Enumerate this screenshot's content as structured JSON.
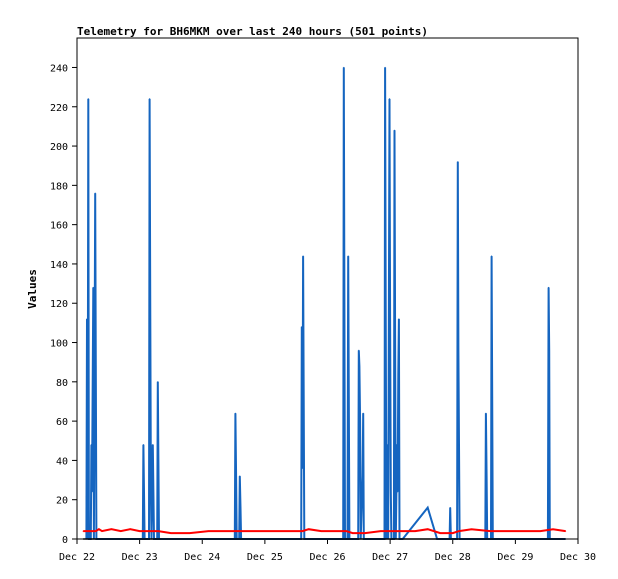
{
  "chart_data": {
    "type": "line",
    "title": "Telemetry for BH6MKM over last 240 hours (501 points)",
    "xlabel": "",
    "ylabel": "Values",
    "ylim": [
      0,
      255
    ],
    "yticks": [
      0,
      20,
      40,
      60,
      80,
      100,
      120,
      140,
      160,
      180,
      200,
      220,
      240
    ],
    "xlim": [
      "Dec 22",
      "Dec 30"
    ],
    "xticks": [
      "Dec 22",
      "Dec 23",
      "Dec 24",
      "Dec 25",
      "Dec 26",
      "Dec 27",
      "Dec 28",
      "Dec 29",
      "Dec 30"
    ],
    "grid": false,
    "legend": "none",
    "series": [
      {
        "color": "#1565c0",
        "points": [
          [
            0.15,
            0
          ],
          [
            0.16,
            112
          ],
          [
            0.17,
            0
          ],
          [
            0.18,
            224
          ],
          [
            0.19,
            0
          ],
          [
            0.22,
            0
          ],
          [
            0.23,
            48
          ],
          [
            0.24,
            24
          ],
          [
            0.26,
            128
          ],
          [
            0.27,
            0
          ],
          [
            0.29,
            176
          ],
          [
            0.3,
            88
          ],
          [
            0.31,
            0
          ],
          [
            1.05,
            0
          ],
          [
            1.06,
            48
          ],
          [
            1.07,
            24
          ],
          [
            1.08,
            0
          ],
          [
            1.15,
            0
          ],
          [
            1.16,
            224
          ],
          [
            1.17,
            112
          ],
          [
            1.18,
            24
          ],
          [
            1.19,
            0
          ],
          [
            1.21,
            48
          ],
          [
            1.22,
            24
          ],
          [
            1.23,
            0
          ],
          [
            1.28,
            0
          ],
          [
            1.29,
            80
          ],
          [
            1.3,
            40
          ],
          [
            1.31,
            0
          ],
          [
            2.52,
            0
          ],
          [
            2.53,
            64
          ],
          [
            2.54,
            32
          ],
          [
            2.55,
            0
          ],
          [
            2.59,
            0
          ],
          [
            2.6,
            32
          ],
          [
            2.61,
            16
          ],
          [
            2.62,
            0
          ],
          [
            3.58,
            0
          ],
          [
            3.59,
            108
          ],
          [
            3.6,
            36
          ],
          [
            3.61,
            144
          ],
          [
            3.62,
            72
          ],
          [
            3.63,
            0
          ],
          [
            4.25,
            0
          ],
          [
            4.26,
            240
          ],
          [
            4.27,
            120
          ],
          [
            4.28,
            0
          ],
          [
            4.32,
            0
          ],
          [
            4.33,
            144
          ],
          [
            4.34,
            72
          ],
          [
            4.35,
            0
          ],
          [
            4.49,
            0
          ],
          [
            4.5,
            96
          ],
          [
            4.51,
            88
          ],
          [
            4.52,
            60
          ],
          [
            4.53,
            0
          ],
          [
            4.56,
            32
          ],
          [
            4.57,
            64
          ],
          [
            4.58,
            0
          ],
          [
            4.91,
            0
          ],
          [
            4.92,
            240
          ],
          [
            4.93,
            120
          ],
          [
            4.94,
            0
          ],
          [
            4.96,
            48
          ],
          [
            4.97,
            0
          ],
          [
            4.99,
            224
          ],
          [
            5.0,
            112
          ],
          [
            5.01,
            24
          ],
          [
            5.02,
            0
          ],
          [
            5.06,
            0
          ],
          [
            5.07,
            208
          ],
          [
            5.08,
            104
          ],
          [
            5.09,
            0
          ],
          [
            5.11,
            48
          ],
          [
            5.12,
            24
          ],
          [
            5.13,
            84
          ],
          [
            5.14,
            112
          ],
          [
            5.15,
            0
          ],
          [
            5.2,
            0
          ],
          [
            5.6,
            16
          ],
          [
            5.75,
            0
          ],
          [
            5.95,
            0
          ],
          [
            5.96,
            16
          ],
          [
            5.97,
            0
          ],
          [
            6.07,
            0
          ],
          [
            6.08,
            192
          ],
          [
            6.09,
            96
          ],
          [
            6.1,
            48
          ],
          [
            6.11,
            0
          ],
          [
            6.52,
            0
          ],
          [
            6.53,
            64
          ],
          [
            6.54,
            32
          ],
          [
            6.55,
            0
          ],
          [
            6.61,
            0
          ],
          [
            6.62,
            144
          ],
          [
            6.63,
            72
          ],
          [
            6.64,
            0
          ],
          [
            7.52,
            0
          ],
          [
            7.53,
            128
          ],
          [
            7.54,
            96
          ],
          [
            7.55,
            0
          ],
          [
            7.8,
            0
          ]
        ]
      },
      {
        "color": "#ff0000",
        "points": [
          [
            0.1,
            4
          ],
          [
            0.3,
            4
          ],
          [
            0.35,
            5
          ],
          [
            0.4,
            4
          ],
          [
            0.55,
            5
          ],
          [
            0.7,
            4
          ],
          [
            0.85,
            5
          ],
          [
            1.0,
            4
          ],
          [
            1.3,
            4
          ],
          [
            1.5,
            3
          ],
          [
            1.8,
            3
          ],
          [
            2.1,
            4
          ],
          [
            2.4,
            4
          ],
          [
            2.8,
            4
          ],
          [
            3.2,
            4
          ],
          [
            3.6,
            4
          ],
          [
            3.7,
            5
          ],
          [
            3.9,
            4
          ],
          [
            4.3,
            4
          ],
          [
            4.4,
            3
          ],
          [
            4.6,
            3
          ],
          [
            4.85,
            4
          ],
          [
            5.1,
            4
          ],
          [
            5.4,
            4
          ],
          [
            5.6,
            5
          ],
          [
            5.8,
            3
          ],
          [
            6.0,
            3
          ],
          [
            6.1,
            4
          ],
          [
            6.3,
            5
          ],
          [
            6.6,
            4
          ],
          [
            7.0,
            4
          ],
          [
            7.4,
            4
          ],
          [
            7.6,
            5
          ],
          [
            7.8,
            4
          ]
        ]
      },
      {
        "color": "#000000",
        "points": [
          [
            0.1,
            0
          ],
          [
            7.8,
            0
          ]
        ]
      }
    ]
  }
}
